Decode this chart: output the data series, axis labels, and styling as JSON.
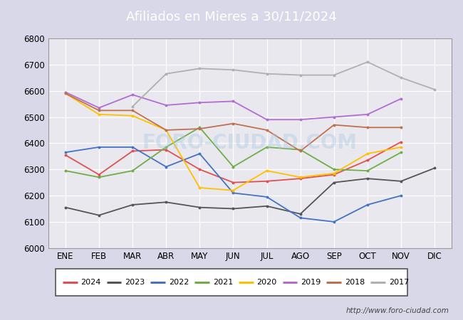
{
  "title": "Afiliados en Mieres a 30/11/2024",
  "xlabels": [
    "ENE",
    "FEB",
    "MAR",
    "ABR",
    "MAY",
    "JUN",
    "JUL",
    "AGO",
    "SEP",
    "OCT",
    "NOV",
    "DIC"
  ],
  "ylim": [
    6000,
    6800
  ],
  "yticks": [
    6000,
    6100,
    6200,
    6300,
    6400,
    6500,
    6600,
    6700,
    6800
  ],
  "watermark": "FORO-CIUDAD.COM",
  "url": "http://www.foro-ciudad.com",
  "series": {
    "2024": {
      "color": "#e05050",
      "data": [
        6355,
        6280,
        6370,
        6375,
        6300,
        6250,
        6255,
        6265,
        6280,
        6335,
        6405,
        null
      ]
    },
    "2023": {
      "color": "#555555",
      "data": [
        6155,
        6125,
        6165,
        6175,
        6155,
        6150,
        6160,
        6130,
        6250,
        6265,
        6255,
        6305
      ]
    },
    "2022": {
      "color": "#4472c4",
      "data": [
        6365,
        6385,
        6385,
        6310,
        6360,
        6210,
        6195,
        6115,
        6100,
        6165,
        6200,
        null
      ]
    },
    "2021": {
      "color": "#70ad47",
      "data": [
        6295,
        6270,
        6295,
        6385,
        6460,
        6310,
        6385,
        6375,
        6300,
        6295,
        6365,
        null
      ]
    },
    "2020": {
      "color": "#ffc000",
      "data": [
        6590,
        6510,
        6505,
        6450,
        6230,
        6220,
        6295,
        6270,
        6285,
        6360,
        6385,
        null
      ]
    },
    "2019": {
      "color": "#b36cd4",
      "data": [
        6595,
        6535,
        6585,
        6545,
        6555,
        6560,
        6490,
        6490,
        6500,
        6510,
        6570,
        null
      ]
    },
    "2018": {
      "color": "#c07050",
      "data": [
        6590,
        6525,
        6525,
        6450,
        6455,
        6475,
        6450,
        6370,
        6470,
        6460,
        6460,
        null
      ]
    },
    "2017": {
      "color": "#b0b0b0",
      "data": [
        null,
        null,
        6540,
        6665,
        6685,
        6680,
        6665,
        6660,
        6660,
        6710,
        6650,
        6605
      ]
    }
  },
  "legend_order": [
    "2024",
    "2023",
    "2022",
    "2021",
    "2020",
    "2019",
    "2018",
    "2017"
  ],
  "title_bg": "#4472c4",
  "title_color": "#ffffff",
  "outer_bg": "#d8d8e8",
  "plot_bg": "#e8e8ee",
  "grid_color": "#ffffff",
  "border_color": "#999999"
}
